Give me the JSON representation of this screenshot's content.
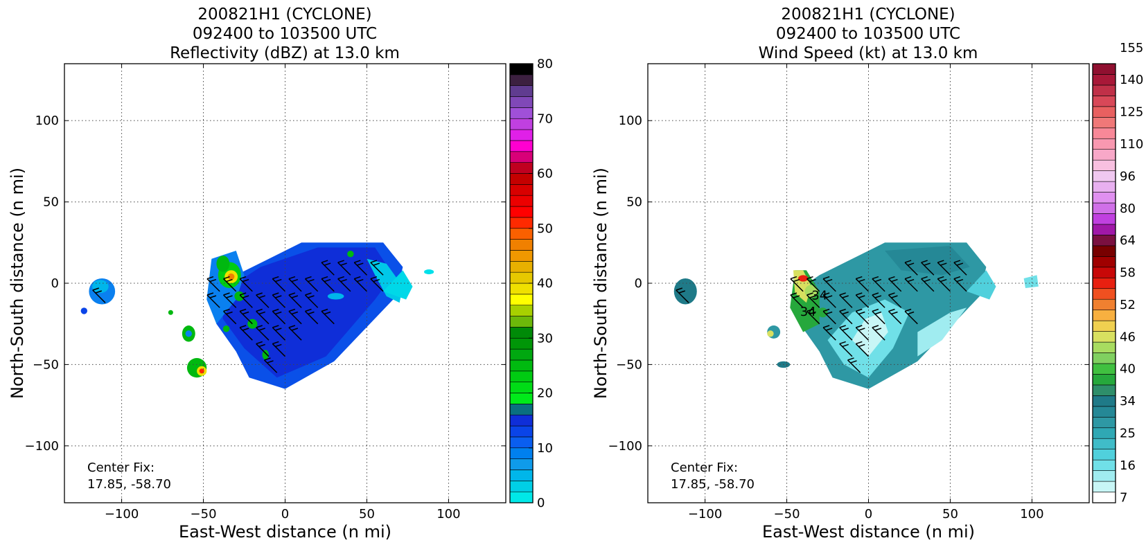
{
  "chart_data": [
    {
      "type": "heatmap",
      "title_lines": [
        "200821H1 (CYCLONE)",
        "092400 to 103500 UTC",
        "Reflectivity (dBZ) at 13.0 km"
      ],
      "xlabel": "East-West distance (n mi)",
      "ylabel": "North-South distance (n mi)",
      "xlim": [
        -135,
        135
      ],
      "ylim": [
        -135,
        135
      ],
      "xticks": [
        -100,
        -50,
        0,
        50,
        100
      ],
      "yticks": [
        -100,
        -50,
        0,
        50,
        100
      ],
      "xtick_labels": [
        "−100",
        "−50",
        "0",
        "50",
        "100"
      ],
      "ytick_labels": [
        "−100",
        "−50",
        "0",
        "50",
        "100"
      ],
      "grid": true,
      "annotation": [
        "Center Fix:",
        "17.85, -58.70"
      ],
      "colorbar": {
        "min": 0,
        "max": 80,
        "ticks": [
          0,
          10,
          20,
          30,
          40,
          50,
          60,
          70,
          80
        ],
        "colors": [
          "#00e8e8",
          "#00cfe6",
          "#00b6ea",
          "#0f9bea",
          "#0080ef",
          "#0a5ef0",
          "#0a44e8",
          "#0f2ed8",
          "#0a7080",
          "#00ea1a",
          "#00dc16",
          "#00cc12",
          "#00ba10",
          "#00a810",
          "#009608",
          "#008a08",
          "#6db80a",
          "#a8d000",
          "#ffff00",
          "#efe000",
          "#e6c800",
          "#e8b000",
          "#f09800",
          "#f08000",
          "#fa6000",
          "#ff2a00",
          "#ff0000",
          "#ec0000",
          "#d80000",
          "#c40000",
          "#c00020",
          "#d80078",
          "#ff00d0",
          "#e020e8",
          "#c040e0",
          "#a050d8",
          "#8048b8",
          "#603c90",
          "#3c2040",
          "#000000"
        ]
      },
      "field": [
        {
          "shape": "poly",
          "pts": [
            [
              -30,
              5
            ],
            [
              10,
              25
            ],
            [
              60,
              25
            ],
            [
              72,
              10
            ],
            [
              68,
              -8
            ],
            [
              30,
              -48
            ],
            [
              0,
              -65
            ],
            [
              -22,
              -58
            ],
            [
              -30,
              -42
            ],
            [
              -42,
              -25
            ],
            [
              -46,
              -6
            ]
          ],
          "color": "#0a50e8"
        },
        {
          "shape": "poly",
          "pts": [
            [
              -15,
              10
            ],
            [
              20,
              22
            ],
            [
              55,
              22
            ],
            [
              66,
              5
            ],
            [
              55,
              -10
            ],
            [
              25,
              -45
            ],
            [
              -5,
              -58
            ],
            [
              -25,
              -40
            ],
            [
              -38,
              -22
            ],
            [
              -38,
              -5
            ]
          ],
          "color": "#0f2ed8"
        },
        {
          "shape": "poly",
          "pts": [
            [
              50,
              15
            ],
            [
              62,
              12
            ],
            [
              72,
              -2
            ],
            [
              70,
              -12
            ],
            [
              62,
              -8
            ],
            [
              55,
              5
            ]
          ],
          "color": "#00c8e8"
        },
        {
          "shape": "poly",
          "pts": [
            [
              60,
              -5
            ],
            [
              72,
              8
            ],
            [
              78,
              -2
            ],
            [
              74,
              -10
            ]
          ],
          "color": "#00d8e8"
        },
        {
          "shape": "poly",
          "pts": [
            [
              -45,
              15
            ],
            [
              -30,
              20
            ],
            [
              -25,
              5
            ],
            [
              -30,
              -10
            ],
            [
              -42,
              -25
            ],
            [
              -48,
              -10
            ]
          ],
          "color": "#0a80ef"
        },
        {
          "shape": "ellipse",
          "cx": -112,
          "cy": -5,
          "rx": 8,
          "ry": 8,
          "color": "#0a80ef"
        },
        {
          "shape": "ellipse",
          "cx": -113,
          "cy": -2,
          "rx": 5,
          "ry": 4,
          "color": "#00b6ea"
        },
        {
          "shape": "ellipse",
          "cx": -59,
          "cy": -31,
          "rx": 4,
          "ry": 5,
          "color": "#00b810"
        },
        {
          "shape": "ellipse",
          "cx": -59,
          "cy": -31,
          "rx": 2,
          "ry": 2,
          "color": "#0a80ef"
        },
        {
          "shape": "ellipse",
          "cx": -54,
          "cy": -52,
          "rx": 6,
          "ry": 6,
          "color": "#00b810"
        },
        {
          "shape": "ellipse",
          "cx": -51,
          "cy": -54,
          "rx": 3,
          "ry": 3,
          "color": "#efe000"
        },
        {
          "shape": "ellipse",
          "cx": -51,
          "cy": -54,
          "rx": 1.5,
          "ry": 1.5,
          "color": "#ff2a00"
        },
        {
          "shape": "ellipse",
          "cx": -34,
          "cy": 5,
          "rx": 7,
          "ry": 8,
          "color": "#00cc12"
        },
        {
          "shape": "ellipse",
          "cx": -33,
          "cy": 4,
          "rx": 4,
          "ry": 4,
          "color": "#efe000"
        },
        {
          "shape": "ellipse",
          "cx": -33,
          "cy": 4,
          "rx": 2,
          "ry": 2,
          "color": "#f08000"
        },
        {
          "shape": "ellipse",
          "cx": -38,
          "cy": 12,
          "rx": 4,
          "ry": 5,
          "color": "#00b810"
        },
        {
          "shape": "ellipse",
          "cx": -28,
          "cy": -8,
          "rx": 3,
          "ry": 3,
          "color": "#00b810"
        },
        {
          "shape": "ellipse",
          "cx": -20,
          "cy": -25,
          "rx": 3,
          "ry": 3,
          "color": "#00b810"
        },
        {
          "shape": "ellipse",
          "cx": -36,
          "cy": -28,
          "rx": 2,
          "ry": 2,
          "color": "#00b810"
        },
        {
          "shape": "ellipse",
          "cx": -12,
          "cy": -44,
          "rx": 2,
          "ry": 3,
          "color": "#00b810"
        },
        {
          "shape": "ellipse",
          "cx": 31,
          "cy": -8,
          "rx": 5,
          "ry": 2,
          "color": "#00b6ea"
        },
        {
          "shape": "ellipse",
          "cx": 88,
          "cy": 7,
          "rx": 3,
          "ry": 1.5,
          "color": "#00e0ea"
        },
        {
          "shape": "ellipse",
          "cx": -123,
          "cy": -17,
          "rx": 2,
          "ry": 2,
          "color": "#0a44e8"
        },
        {
          "shape": "ellipse",
          "cx": -70,
          "cy": -18,
          "rx": 1.5,
          "ry": 1.5,
          "color": "#00b810"
        },
        {
          "shape": "ellipse",
          "cx": 40,
          "cy": 18,
          "rx": 2,
          "ry": 2,
          "color": "#00b810"
        }
      ],
      "barbs": [
        [
          -110,
          -12
        ],
        [
          -40,
          -5
        ],
        [
          -30,
          -5
        ],
        [
          -40,
          -15
        ],
        [
          -30,
          -15
        ],
        [
          -20,
          -15
        ],
        [
          -10,
          -15
        ],
        [
          0,
          -15
        ],
        [
          10,
          -15
        ],
        [
          20,
          -15
        ],
        [
          -30,
          -25
        ],
        [
          -20,
          -25
        ],
        [
          -10,
          -25
        ],
        [
          0,
          -25
        ],
        [
          10,
          -25
        ],
        [
          20,
          -25
        ],
        [
          30,
          -25
        ],
        [
          -20,
          -35
        ],
        [
          -10,
          -35
        ],
        [
          0,
          -35
        ],
        [
          10,
          -35
        ],
        [
          -10,
          -45
        ],
        [
          0,
          -45
        ],
        [
          -5,
          -55
        ],
        [
          20,
          -5
        ],
        [
          30,
          -5
        ],
        [
          40,
          -5
        ],
        [
          50,
          -5
        ],
        [
          60,
          -5
        ],
        [
          40,
          5
        ],
        [
          50,
          5
        ],
        [
          60,
          5
        ],
        [
          30,
          5
        ],
        [
          -20,
          -5
        ],
        [
          0,
          -5
        ],
        [
          10,
          -5
        ]
      ]
    },
    {
      "type": "heatmap",
      "title_lines": [
        "200821H1 (CYCLONE)",
        "092400 to 103500 UTC",
        "Wind Speed (kt) at 13.0 km"
      ],
      "xlabel": "East-West distance (n mi)",
      "ylabel": "North-South distance (n mi)",
      "xlim": [
        -135,
        135
      ],
      "ylim": [
        -135,
        135
      ],
      "xticks": [
        -100,
        -50,
        0,
        50,
        100
      ],
      "yticks": [
        -100,
        -50,
        0,
        50,
        100
      ],
      "xtick_labels": [
        "−100",
        "−50",
        "0",
        "50",
        "100"
      ],
      "ytick_labels": [
        "−100",
        "−50",
        "0",
        "50",
        "100"
      ],
      "grid": true,
      "annotation": [
        "Center Fix:",
        "17.85, -58.70"
      ],
      "contour_labels": [
        {
          "text": "34",
          "x": -37,
          "y": -20
        },
        {
          "text": "34",
          "x": -30,
          "y": -10
        }
      ],
      "colorbar": {
        "ticks": [
          "7",
          "16",
          "25",
          "34",
          "40",
          "46",
          "52",
          "58",
          "64",
          "80",
          "96",
          "110",
          "125",
          "140",
          "155"
        ],
        "colors": [
          "#ffffff",
          "#c8f6f6",
          "#a0ecf0",
          "#70e0e8",
          "#50d0dc",
          "#40bcc8",
          "#2fa8b4",
          "#2e98a4",
          "#258896",
          "#1f7a88",
          "#2e8e6a",
          "#26a83c",
          "#40c040",
          "#80d060",
          "#a8dc60",
          "#d8e060",
          "#f0d050",
          "#f8b040",
          "#f08030",
          "#f05020",
          "#e82010",
          "#c80808",
          "#a00000",
          "#780000",
          "#7a1040",
          "#a018a8",
          "#c040e0",
          "#d070e8",
          "#e090f0",
          "#e8b0f0",
          "#f0c8f0",
          "#f8c0e0",
          "#f8a8c8",
          "#f898b0",
          "#f88898",
          "#f07878",
          "#e86060",
          "#d84858",
          "#c03048",
          "#a81838",
          "#901030"
        ]
      },
      "field": [
        {
          "shape": "poly",
          "pts": [
            [
              -30,
              5
            ],
            [
              10,
              25
            ],
            [
              60,
              25
            ],
            [
              72,
              10
            ],
            [
              68,
              -8
            ],
            [
              30,
              -48
            ],
            [
              0,
              -65
            ],
            [
              -22,
              -58
            ],
            [
              -30,
              -42
            ],
            [
              -42,
              -25
            ],
            [
              -46,
              -6
            ]
          ],
          "color": "#2e98a4"
        },
        {
          "shape": "poly",
          "pts": [
            [
              -10,
              -18
            ],
            [
              10,
              -10
            ],
            [
              25,
              -18
            ],
            [
              15,
              -40
            ],
            [
              0,
              -58
            ],
            [
              -15,
              -50
            ],
            [
              -25,
              -35
            ]
          ],
          "color": "#70e0e8"
        },
        {
          "shape": "poly",
          "pts": [
            [
              -2,
              -22
            ],
            [
              8,
              -18
            ],
            [
              12,
              -30
            ],
            [
              0,
              -45
            ],
            [
              -10,
              -35
            ]
          ],
          "color": "#c8f6f6"
        },
        {
          "shape": "poly",
          "pts": [
            [
              30,
              -30
            ],
            [
              50,
              -18
            ],
            [
              60,
              -15
            ],
            [
              45,
              -35
            ],
            [
              30,
              -45
            ]
          ],
          "color": "#a0ecf0"
        },
        {
          "shape": "poly",
          "pts": [
            [
              10,
              20
            ],
            [
              50,
              23
            ],
            [
              62,
              10
            ],
            [
              45,
              5
            ],
            [
              20,
              8
            ]
          ],
          "color": "#258896"
        },
        {
          "shape": "poly",
          "pts": [
            [
              60,
              -5
            ],
            [
              72,
              8
            ],
            [
              78,
              -2
            ],
            [
              74,
              -10
            ]
          ],
          "color": "#50d0dc"
        },
        {
          "shape": "poly",
          "pts": [
            [
              95,
              3
            ],
            [
              103,
              5
            ],
            [
              104,
              -2
            ],
            [
              96,
              -3
            ]
          ],
          "color": "#70e0e8"
        },
        {
          "shape": "poly",
          "pts": [
            [
              -45,
              8
            ],
            [
              -38,
              8
            ],
            [
              -30,
              -5
            ],
            [
              -30,
              -25
            ],
            [
              -40,
              -30
            ],
            [
              -48,
              -15
            ]
          ],
          "color": "#26a83c"
        },
        {
          "shape": "poly",
          "pts": [
            [
              -46,
              8
            ],
            [
              -40,
              8
            ],
            [
              -35,
              -2
            ],
            [
              -38,
              -12
            ],
            [
              -45,
              -6
            ]
          ],
          "color": "#d8e060"
        },
        {
          "shape": "ellipse",
          "cx": -40,
          "cy": 3,
          "rx": 3,
          "ry": 2,
          "color": "#e82010"
        },
        {
          "shape": "ellipse",
          "cx": -35,
          "cy": -5,
          "rx": 4,
          "ry": 4,
          "color": "#a8dc60"
        },
        {
          "shape": "ellipse",
          "cx": -112,
          "cy": -5,
          "rx": 7,
          "ry": 8,
          "color": "#1f7a88"
        },
        {
          "shape": "ellipse",
          "cx": -58,
          "cy": -30,
          "rx": 4,
          "ry": 4,
          "color": "#2e98a4"
        },
        {
          "shape": "ellipse",
          "cx": -60,
          "cy": -31,
          "rx": 2,
          "ry": 2,
          "color": "#d8e060"
        },
        {
          "shape": "ellipse",
          "cx": -52,
          "cy": -50,
          "rx": 4,
          "ry": 2,
          "color": "#1f7a88"
        },
        {
          "shape": "ellipse",
          "cx": -28,
          "cy": -18,
          "rx": 3,
          "ry": 3,
          "color": "#26a83c"
        }
      ],
      "barbs": [
        [
          -110,
          -12
        ],
        [
          -40,
          -5
        ],
        [
          -30,
          -5
        ],
        [
          -40,
          -15
        ],
        [
          -30,
          -15
        ],
        [
          -20,
          -15
        ],
        [
          -10,
          -15
        ],
        [
          0,
          -15
        ],
        [
          10,
          -15
        ],
        [
          20,
          -15
        ],
        [
          -30,
          -25
        ],
        [
          -20,
          -25
        ],
        [
          -10,
          -25
        ],
        [
          0,
          -25
        ],
        [
          10,
          -25
        ],
        [
          20,
          -25
        ],
        [
          30,
          -25
        ],
        [
          -20,
          -35
        ],
        [
          -10,
          -35
        ],
        [
          0,
          -35
        ],
        [
          10,
          -35
        ],
        [
          -10,
          -45
        ],
        [
          0,
          -45
        ],
        [
          -5,
          -55
        ],
        [
          20,
          -5
        ],
        [
          30,
          -5
        ],
        [
          40,
          -5
        ],
        [
          50,
          -5
        ],
        [
          60,
          -5
        ],
        [
          40,
          5
        ],
        [
          50,
          5
        ],
        [
          60,
          5
        ],
        [
          30,
          5
        ],
        [
          -20,
          -5
        ],
        [
          0,
          -5
        ],
        [
          10,
          -5
        ]
      ]
    }
  ]
}
